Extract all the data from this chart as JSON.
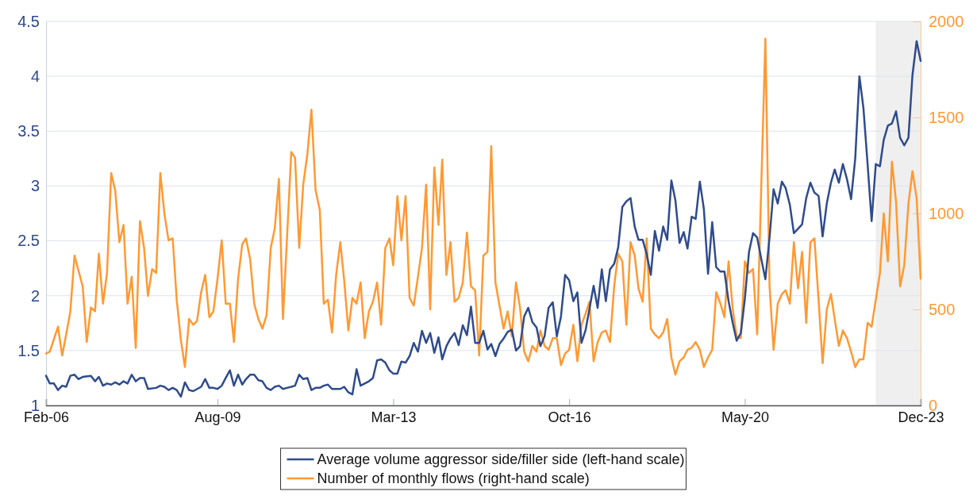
{
  "chart_data": {
    "type": "line",
    "xlim": [
      "2006-02",
      "2023-12"
    ],
    "xticks": [
      {
        "value": "2006-02",
        "label": "Feb-06"
      },
      {
        "value": "2009-08",
        "label": "Aug-09"
      },
      {
        "value": "2013-03",
        "label": "Mar-13"
      },
      {
        "value": "2016-10",
        "label": "Oct-16"
      },
      {
        "value": "2020-05",
        "label": "May-20"
      },
      {
        "value": "2023-12",
        "label": "Dec-23"
      }
    ],
    "ylim": [
      1,
      4.5
    ],
    "yticks": [
      1,
      1.5,
      2,
      2.5,
      3,
      3.5,
      4,
      4.5
    ],
    "y2lim": [
      0,
      2000
    ],
    "y2ticks": [
      0,
      500,
      1000,
      1500,
      2000
    ],
    "grid": "y",
    "legend": "bottom",
    "bands": [
      {
        "axis": "x",
        "from": "2023-01",
        "to": "2023-12",
        "color": "#efefef"
      }
    ],
    "series": [
      {
        "name": "Average volume aggressor side/filler side (left-hand scale)",
        "color": "#2f4b8c",
        "x": [
          "2006-02",
          "2006-03",
          "2006-04",
          "2006-05",
          "2006-06",
          "2006-07",
          "2006-08",
          "2006-09",
          "2006-10",
          "2006-11",
          "2007-01",
          "2007-02",
          "2007-03",
          "2007-04",
          "2007-05",
          "2007-06",
          "2007-07",
          "2007-08",
          "2007-09",
          "2007-10",
          "2007-11",
          "2007-12",
          "2008-01",
          "2008-02",
          "2008-03",
          "2008-05",
          "2008-06",
          "2008-07",
          "2008-08",
          "2008-09",
          "2008-10",
          "2008-11",
          "2008-12",
          "2009-01",
          "2009-02",
          "2009-04",
          "2009-05",
          "2009-06",
          "2009-07",
          "2009-08",
          "2009-09",
          "2009-10",
          "2009-11",
          "2009-12",
          "2010-01",
          "2010-02",
          "2010-03",
          "2010-04",
          "2010-05",
          "2010-06",
          "2010-07",
          "2010-08",
          "2010-09",
          "2010-10",
          "2010-11",
          "2010-12",
          "2011-01",
          "2011-02",
          "2011-03",
          "2011-04",
          "2011-05",
          "2011-06",
          "2011-07",
          "2011-08",
          "2011-09",
          "2011-10",
          "2011-11",
          "2011-12",
          "2012-01",
          "2012-02",
          "2012-03",
          "2012-04",
          "2012-05",
          "2012-06",
          "2012-07",
          "2012-08",
          "2012-09",
          "2012-10",
          "2012-11",
          "2012-12",
          "2013-01",
          "2013-02",
          "2013-03",
          "2013-04",
          "2013-05",
          "2013-06",
          "2013-07",
          "2013-08",
          "2013-09",
          "2013-10",
          "2013-11",
          "2013-12",
          "2014-01",
          "2014-02",
          "2014-03",
          "2014-04",
          "2014-05",
          "2014-06",
          "2014-07",
          "2014-08",
          "2014-09",
          "2014-10",
          "2014-11",
          "2014-12",
          "2015-01",
          "2015-02",
          "2015-03",
          "2015-04",
          "2015-05",
          "2015-06",
          "2015-07",
          "2015-08",
          "2015-09",
          "2015-10",
          "2015-11",
          "2015-12",
          "2016-01",
          "2016-02",
          "2016-03",
          "2016-04",
          "2016-05",
          "2016-06",
          "2016-07",
          "2016-08",
          "2016-09",
          "2016-10",
          "2016-11",
          "2016-12",
          "2017-01",
          "2017-02",
          "2017-03",
          "2017-04",
          "2017-05",
          "2017-06",
          "2017-07",
          "2017-08",
          "2017-09",
          "2017-10",
          "2017-11",
          "2017-12",
          "2018-01",
          "2018-02",
          "2018-03",
          "2018-04",
          "2018-05",
          "2018-06",
          "2018-07",
          "2018-08",
          "2018-09",
          "2018-10",
          "2018-11",
          "2018-12",
          "2019-01",
          "2019-02",
          "2019-03",
          "2019-04",
          "2019-05",
          "2019-06",
          "2019-07",
          "2019-08",
          "2019-09",
          "2019-10",
          "2019-11",
          "2019-12",
          "2020-01",
          "2020-02",
          "2020-03",
          "2020-04",
          "2020-05",
          "2020-06",
          "2020-07",
          "2020-08",
          "2020-09",
          "2020-10",
          "2020-11",
          "2020-12",
          "2021-01",
          "2021-02",
          "2021-03",
          "2021-04",
          "2021-05",
          "2021-06",
          "2021-07",
          "2021-08",
          "2021-09",
          "2021-10",
          "2021-11",
          "2021-12",
          "2022-01",
          "2022-02",
          "2022-03",
          "2022-04",
          "2022-05",
          "2022-06",
          "2022-07",
          "2022-08",
          "2022-09",
          "2022-10",
          "2022-11",
          "2022-12",
          "2023-01",
          "2023-02",
          "2023-03",
          "2023-04",
          "2023-05",
          "2023-06",
          "2023-07",
          "2023-08",
          "2023-09",
          "2023-10",
          "2023-11",
          "2023-12"
        ],
        "values": [
          1.27,
          1.2,
          1.2,
          1.14,
          1.18,
          1.17,
          1.27,
          1.28,
          1.24,
          1.26,
          1.27,
          1.22,
          1.26,
          1.18,
          1.2,
          1.19,
          1.21,
          1.19,
          1.22,
          1.2,
          1.28,
          1.22,
          1.25,
          1.25,
          1.15,
          1.16,
          1.18,
          1.17,
          1.14,
          1.16,
          1.14,
          1.08,
          1.21,
          1.14,
          1.13,
          1.17,
          1.24,
          1.16,
          1.16,
          1.15,
          1.18,
          1.25,
          1.32,
          1.18,
          1.28,
          1.19,
          1.24,
          1.28,
          1.28,
          1.23,
          1.22,
          1.16,
          1.14,
          1.17,
          1.18,
          1.15,
          1.16,
          1.17,
          1.18,
          1.28,
          1.24,
          1.25,
          1.14,
          1.16,
          1.16,
          1.18,
          1.19,
          1.15,
          1.15,
          1.15,
          1.17,
          1.12,
          1.1,
          1.33,
          1.18,
          1.2,
          1.22,
          1.25,
          1.41,
          1.42,
          1.39,
          1.32,
          1.29,
          1.29,
          1.4,
          1.39,
          1.45,
          1.57,
          1.49,
          1.68,
          1.57,
          1.66,
          1.48,
          1.62,
          1.42,
          1.54,
          1.61,
          1.66,
          1.55,
          1.73,
          1.64,
          1.9,
          1.57,
          1.57,
          1.68,
          1.51,
          1.56,
          1.45,
          1.56,
          1.61,
          1.67,
          1.69,
          1.5,
          1.54,
          1.81,
          1.89,
          1.76,
          1.71,
          1.54,
          1.63,
          1.89,
          1.94,
          1.63,
          1.81,
          2.19,
          2.14,
          1.95,
          2.03,
          1.57,
          1.69,
          1.88,
          2.09,
          1.89,
          2.24,
          1.95,
          2.24,
          2.29,
          2.44,
          2.81,
          2.86,
          2.89,
          2.63,
          2.51,
          2.51,
          2.38,
          2.19,
          2.59,
          2.41,
          2.63,
          2.51,
          3.05,
          2.87,
          2.48,
          2.58,
          2.43,
          2.72,
          2.7,
          3.04,
          2.79,
          2.2,
          2.67,
          2.26,
          2.22,
          2.22,
          1.95,
          1.75,
          1.59,
          1.66,
          1.97,
          2.4,
          2.57,
          2.53,
          2.33,
          2.15,
          2.53,
          2.97,
          2.84,
          3.04,
          2.98,
          2.83,
          2.57,
          2.61,
          2.65,
          2.89,
          3.03,
          2.94,
          2.91,
          2.54,
          2.84,
          3.03,
          3.15,
          3.03,
          3.2,
          3.06,
          2.88,
          3.25,
          4.0,
          3.71,
          3.2,
          2.68,
          3.2,
          3.18,
          3.42,
          3.55,
          3.57,
          3.68,
          3.44,
          3.37,
          3.44,
          4.01,
          4.32,
          4.14
        ]
      },
      {
        "name": "Number of monthly flows (right-hand scale)",
        "color": "#ff9933",
        "axis": "y2",
        "x": [
          "2006-02",
          "2006-03",
          "2006-05",
          "2006-06",
          "2006-07",
          "2006-08",
          "2006-09",
          "2006-11",
          "2006-12",
          "2007-01",
          "2007-02",
          "2007-03",
          "2007-04",
          "2007-05",
          "2007-06",
          "2007-07",
          "2007-08",
          "2007-09",
          "2007-10",
          "2007-11",
          "2007-12",
          "2008-01",
          "2008-02",
          "2008-03",
          "2008-04",
          "2008-05",
          "2008-06",
          "2008-07",
          "2008-08",
          "2008-09",
          "2008-10",
          "2008-11",
          "2008-12",
          "2009-01",
          "2009-02",
          "2009-03",
          "2009-04",
          "2009-05",
          "2009-06",
          "2009-07",
          "2009-08",
          "2009-09",
          "2009-10",
          "2009-11",
          "2009-12",
          "2010-01",
          "2010-02",
          "2010-03",
          "2010-04",
          "2010-05",
          "2010-06",
          "2010-07",
          "2010-08",
          "2010-09",
          "2010-10",
          "2010-11",
          "2010-12",
          "2011-02",
          "2011-03",
          "2011-04",
          "2011-05",
          "2011-06",
          "2011-07",
          "2011-08",
          "2011-09",
          "2011-10",
          "2011-11",
          "2011-12",
          "2012-01",
          "2012-02",
          "2012-03",
          "2012-04",
          "2012-05",
          "2012-06",
          "2012-07",
          "2012-08",
          "2012-09",
          "2012-10",
          "2012-11",
          "2012-12",
          "2013-01",
          "2013-02",
          "2013-03",
          "2013-04",
          "2013-05",
          "2013-06",
          "2013-07",
          "2013-08",
          "2013-09",
          "2013-10",
          "2013-11",
          "2013-12",
          "2014-01",
          "2014-02",
          "2014-03",
          "2014-04",
          "2014-05",
          "2014-06",
          "2014-07",
          "2014-08",
          "2014-09",
          "2014-10",
          "2014-11",
          "2014-12",
          "2015-01",
          "2015-02",
          "2015-03",
          "2015-04",
          "2015-06",
          "2015-07",
          "2015-08",
          "2015-09",
          "2015-10",
          "2015-11",
          "2015-12",
          "2016-01",
          "2016-02",
          "2016-03",
          "2016-04",
          "2016-05",
          "2016-06",
          "2016-07",
          "2016-08",
          "2016-09",
          "2016-10",
          "2016-11",
          "2016-12",
          "2017-01",
          "2017-02",
          "2017-03",
          "2017-04",
          "2017-05",
          "2017-06",
          "2017-07",
          "2017-08",
          "2017-09",
          "2017-10",
          "2017-11",
          "2017-12",
          "2018-01",
          "2018-02",
          "2018-03",
          "2018-04",
          "2018-05",
          "2018-06",
          "2018-07",
          "2018-08",
          "2018-09",
          "2018-10",
          "2018-11",
          "2018-12",
          "2019-01",
          "2019-02",
          "2019-03",
          "2019-04",
          "2019-05",
          "2019-06",
          "2019-07",
          "2019-08",
          "2019-09",
          "2019-10",
          "2019-11",
          "2019-12",
          "2020-01",
          "2020-02",
          "2020-03",
          "2020-04",
          "2020-05",
          "2020-06",
          "2020-07",
          "2020-08",
          "2020-09",
          "2020-10",
          "2020-11",
          "2020-12",
          "2021-01",
          "2021-02",
          "2021-03",
          "2021-04",
          "2021-05",
          "2021-06",
          "2021-07",
          "2021-08",
          "2021-09",
          "2021-10",
          "2021-11",
          "2021-12",
          "2022-01",
          "2022-02",
          "2022-03",
          "2022-04",
          "2022-05",
          "2022-06",
          "2022-07",
          "2022-08",
          "2022-09",
          "2022-10",
          "2022-11",
          "2022-12",
          "2023-01",
          "2023-02",
          "2023-03",
          "2023-04",
          "2023-05",
          "2023-06",
          "2023-07",
          "2023-08",
          "2023-09",
          "2023-10",
          "2023-11",
          "2023-12"
        ],
        "values": [
          270,
          280,
          410,
          260,
          370,
          490,
          780,
          620,
          330,
          510,
          490,
          790,
          530,
          690,
          1210,
          1120,
          850,
          940,
          530,
          670,
          300,
          960,
          820,
          570,
          710,
          690,
          1210,
          1000,
          860,
          870,
          550,
          340,
          200,
          450,
          420,
          440,
          590,
          680,
          460,
          490,
          660,
          860,
          530,
          530,
          330,
          660,
          840,
          870,
          760,
          530,
          450,
          400,
          470,
          820,
          920,
          1180,
          450,
          1320,
          1290,
          820,
          1150,
          1310,
          1540,
          1120,
          1020,
          530,
          550,
          380,
          680,
          850,
          650,
          390,
          560,
          530,
          640,
          350,
          490,
          540,
          640,
          420,
          820,
          870,
          730,
          1090,
          860,
          1090,
          560,
          520,
          670,
          820,
          1150,
          500,
          1240,
          940,
          1280,
          680,
          850,
          540,
          560,
          640,
          900,
          620,
          600,
          260,
          780,
          800,
          1350,
          640,
          400,
          490,
          360,
          640,
          510,
          280,
          230,
          310,
          280,
          390,
          310,
          290,
          350,
          350,
          210,
          270,
          290,
          420,
          230,
          420,
          480,
          540,
          230,
          330,
          380,
          390,
          330,
          620,
          790,
          750,
          420,
          850,
          780,
          610,
          540,
          870,
          400,
          370,
          350,
          380,
          450,
          250,
          160,
          230,
          250,
          290,
          300,
          330,
          290,
          200,
          250,
          290,
          590,
          530,
          460,
          750,
          500,
          360,
          350,
          750,
          690,
          710,
          370,
          1160,
          1910,
          620,
          290,
          530,
          580,
          600,
          530,
          850,
          610,
          800,
          430,
          850,
          870,
          550,
          220,
          500,
          580,
          450,
          310,
          390,
          350,
          280,
          200,
          240,
          240,
          430,
          410,
          550,
          690,
          1000,
          750,
          1270,
          1060,
          620,
          730,
          1050,
          1220,
          1080,
          660
        ]
      }
    ]
  }
}
